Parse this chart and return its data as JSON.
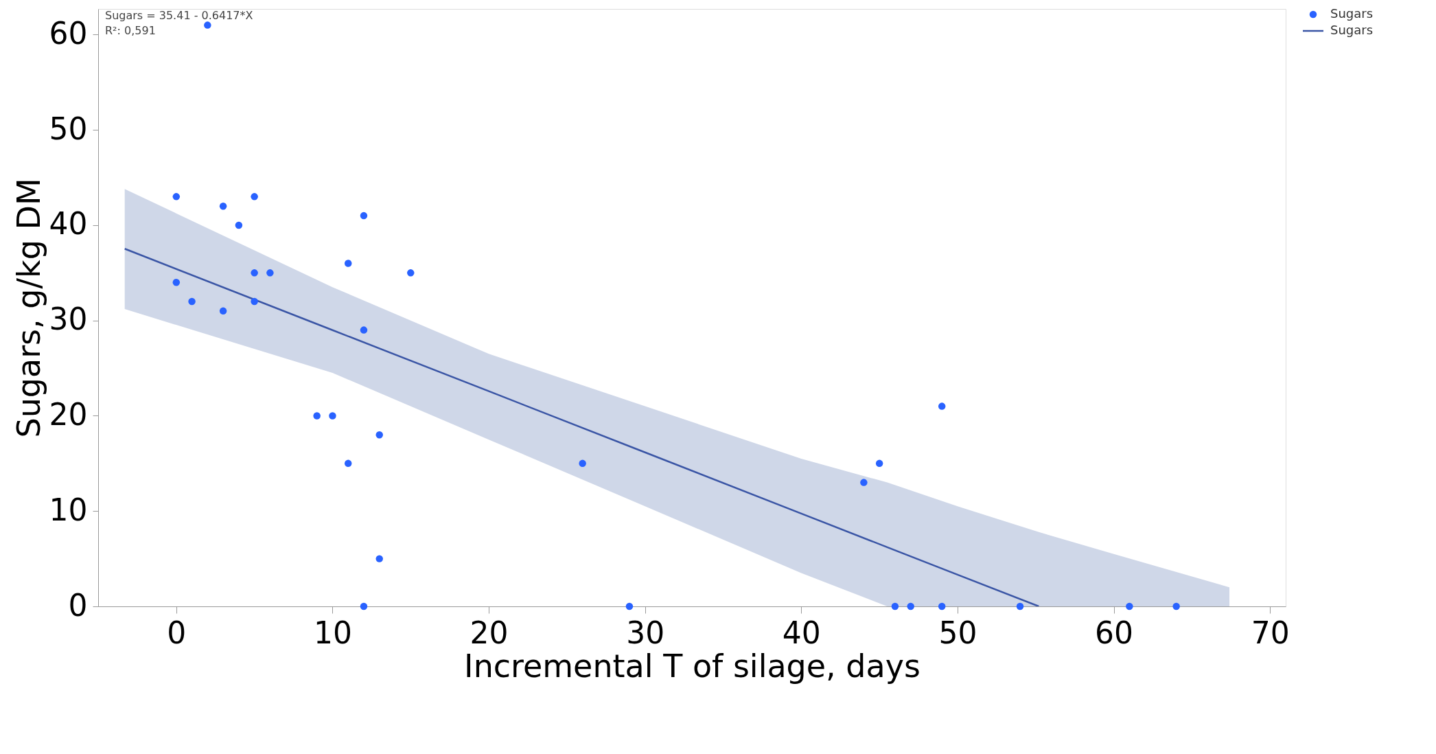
{
  "chart_data": {
    "type": "scatter",
    "xlabel": "Incremental T of silage, days",
    "ylabel": "Sugars, g/kg DM",
    "xlim": [
      -5,
      71
    ],
    "ylim": [
      0,
      62.7
    ],
    "xticks": [
      0,
      10,
      20,
      30,
      40,
      50,
      60,
      70
    ],
    "yticks": [
      0,
      10,
      20,
      30,
      40,
      50,
      60
    ],
    "grid": false,
    "legend": "top right",
    "annotations": [
      "Sugars = 35.41 - 0.6417*X",
      "R²: 0,591"
    ],
    "series": [
      {
        "name": "Sugars",
        "type": "scatter",
        "color": "#2962ff",
        "x": [
          0,
          3,
          4,
          5,
          12,
          0,
          1,
          3,
          5,
          6,
          5,
          11,
          15,
          12,
          9,
          10,
          13,
          11,
          13,
          12,
          26,
          29,
          44,
          45,
          49,
          46,
          47,
          49,
          54,
          61,
          64,
          2
        ],
        "values": [
          43,
          42,
          40,
          43,
          41,
          34,
          32,
          31,
          35,
          35,
          32,
          36,
          35,
          29,
          20,
          20,
          18,
          15,
          5,
          0,
          15,
          0,
          13,
          15,
          21,
          0,
          0,
          0,
          0,
          0,
          0,
          61
        ]
      },
      {
        "name": "Sugars",
        "type": "line",
        "color": "#3a55a5",
        "x": [
          -3.3,
          10,
          20,
          30,
          40,
          45.5,
          50,
          55.2,
          60,
          67.4
        ],
        "values": [
          37.53,
          28.99,
          22.58,
          16.16,
          9.74,
          6.21,
          3.33,
          0,
          null,
          null
        ],
        "lower": [
          31.2,
          24.5,
          17.5,
          10.5,
          3.5,
          0,
          0,
          0,
          0,
          0
        ],
        "upper": [
          43.8,
          33.5,
          26.5,
          21,
          15.5,
          13,
          10.5,
          7.8,
          5.5,
          2
        ]
      }
    ]
  }
}
